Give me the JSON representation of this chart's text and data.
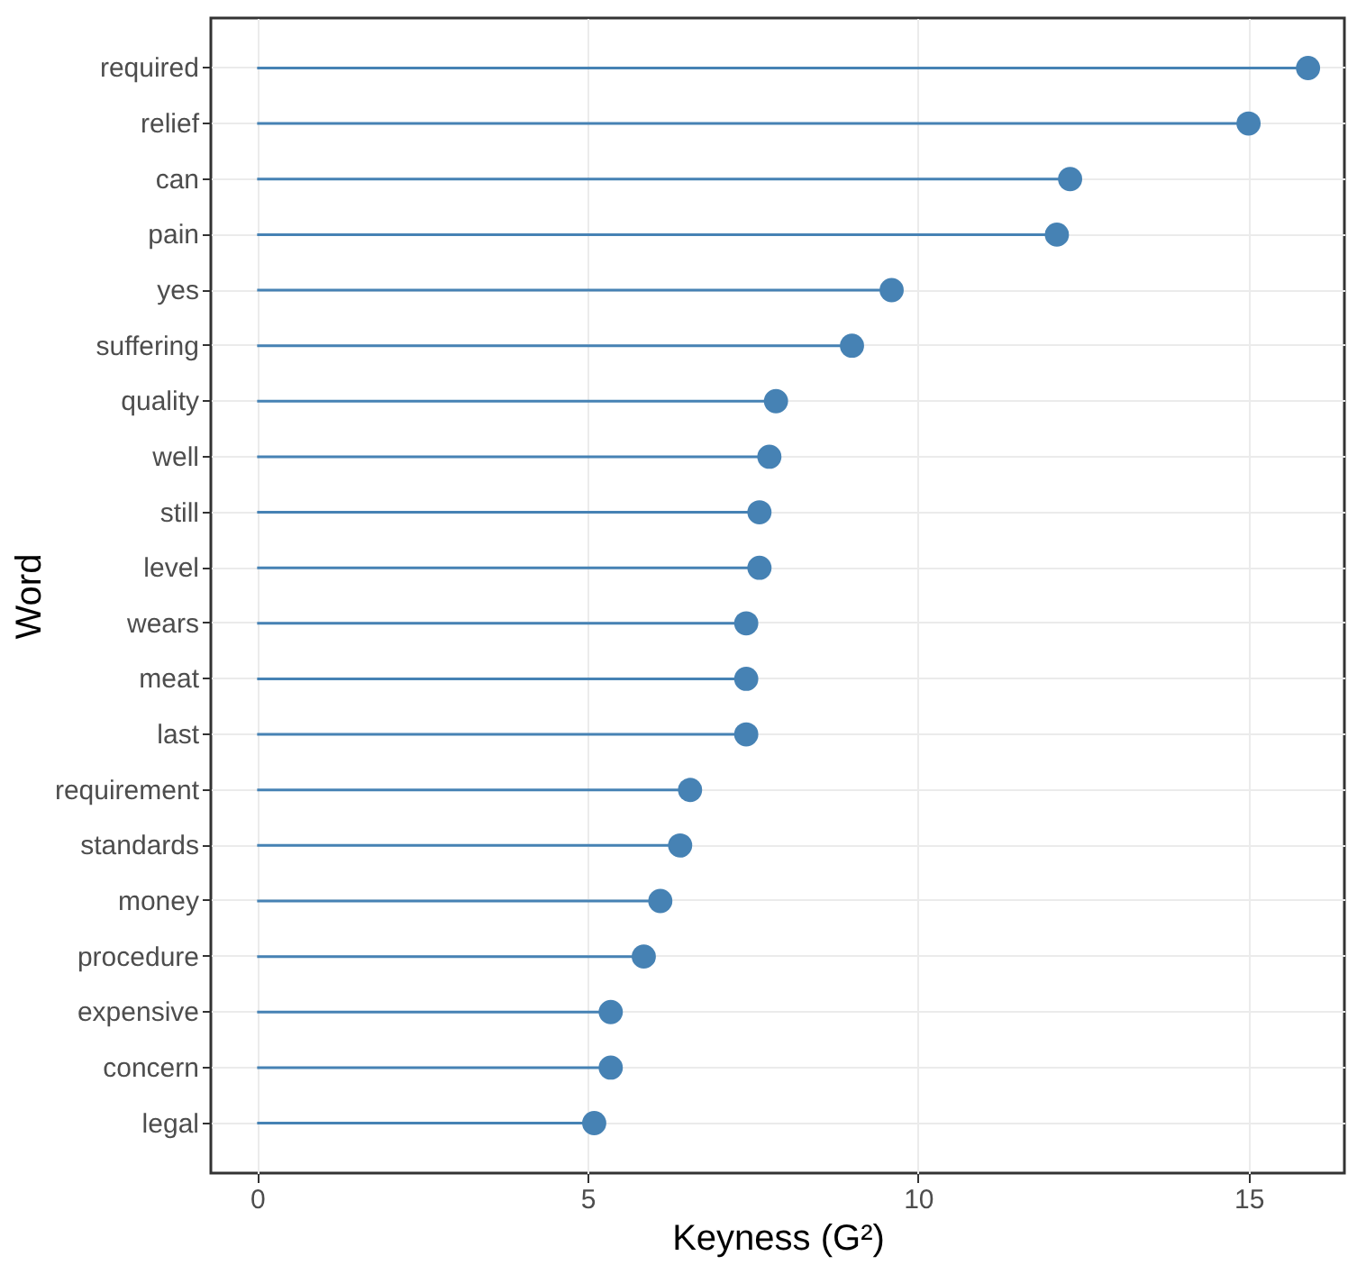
{
  "chart_data": {
    "type": "lollipop",
    "orientation": "horizontal",
    "xlabel": "Keyness (G²)",
    "ylabel": "Word",
    "categories": [
      "required",
      "relief",
      "can",
      "pain",
      "yes",
      "suffering",
      "quality",
      "well",
      "still",
      "level",
      "wears",
      "meat",
      "last",
      "requirement",
      "standards",
      "money",
      "procedure",
      "expensive",
      "concern",
      "legal"
    ],
    "values": [
      15.9,
      15.0,
      12.3,
      12.1,
      9.6,
      9.0,
      7.85,
      7.75,
      7.6,
      7.6,
      7.4,
      7.4,
      7.4,
      6.55,
      6.4,
      6.1,
      5.85,
      5.35,
      5.35,
      5.1
    ],
    "color": "#4682b4",
    "marker": "circle",
    "xlim": [
      -0.7,
      16.45
    ],
    "xticks": [
      0,
      5,
      10,
      15
    ],
    "grid": true
  }
}
